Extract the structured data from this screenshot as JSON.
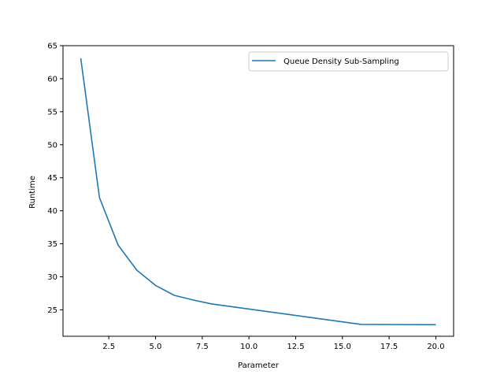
{
  "chart_data": {
    "type": "line",
    "xlabel": "Parameter",
    "ylabel": "Runtime",
    "xlim": [
      0.05,
      20.95
    ],
    "ylim": [
      21.0,
      65.0
    ],
    "x_ticks": [
      2.5,
      5.0,
      7.5,
      10.0,
      12.5,
      15.0,
      17.5,
      20.0
    ],
    "x_tick_labels": [
      "2.5",
      "5.0",
      "7.5",
      "10.0",
      "12.5",
      "15.0",
      "17.5",
      "20.0"
    ],
    "y_ticks": [
      25,
      30,
      35,
      40,
      45,
      50,
      55,
      60,
      65
    ],
    "y_tick_labels": [
      "25",
      "30",
      "35",
      "40",
      "45",
      "50",
      "55",
      "60",
      "65"
    ],
    "grid": false,
    "legend_position": "top-right",
    "series": [
      {
        "name": "Queue Density Sub-Sampling",
        "color": "#1f77b4",
        "x": [
          1,
          2,
          3,
          4,
          5,
          6,
          7,
          8,
          16,
          20
        ],
        "y": [
          63.1,
          42.0,
          34.8,
          31.0,
          28.7,
          27.2,
          26.5,
          25.9,
          22.8,
          22.75
        ]
      }
    ]
  }
}
